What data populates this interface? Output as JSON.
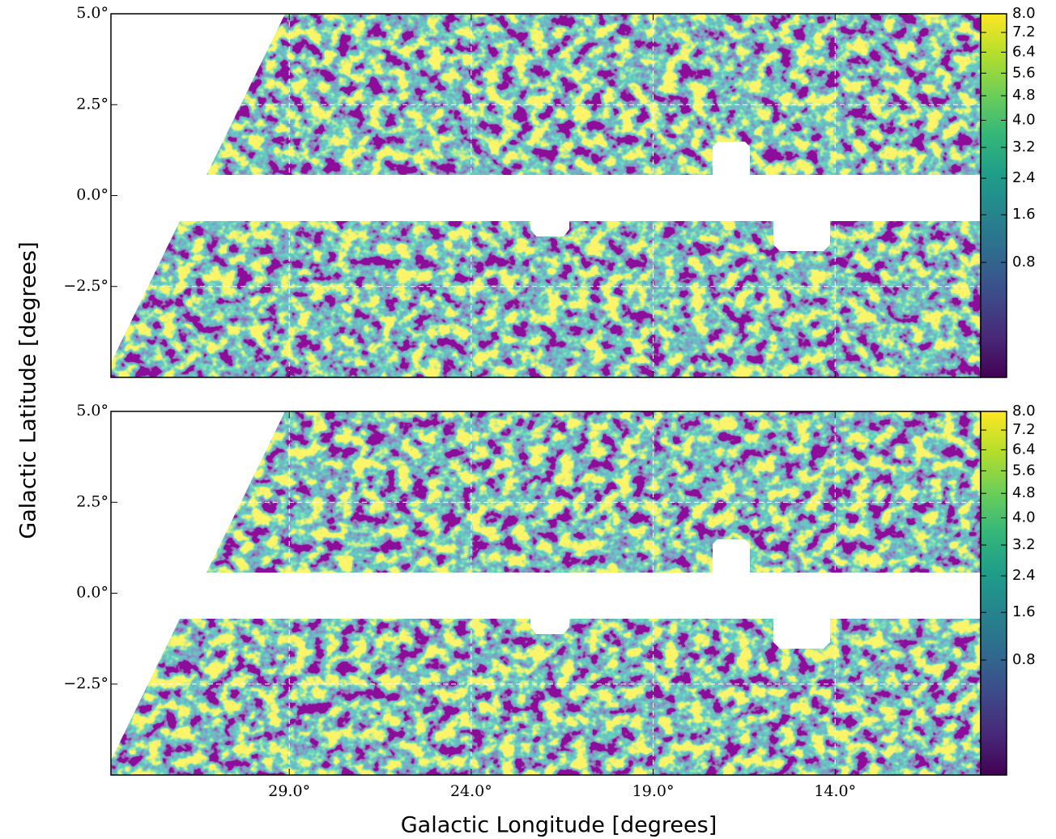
{
  "xlabel": "Galactic Longitude [degrees]",
  "ylabel": "Galactic Latitude [degrees]",
  "chart_data": [
    {
      "type": "heatmap",
      "xlim": [
        33.9,
        10.0
      ],
      "xticks": [
        29,
        24,
        19,
        14
      ],
      "ylim": [
        -5,
        5
      ],
      "yticks": [
        {
          "value": 5,
          "label": "5.0°"
        },
        {
          "value": 2.5,
          "label": "2.5°"
        },
        {
          "value": 0,
          "label": "0.0°"
        },
        {
          "value": -2.5,
          "label": "−2.5°"
        }
      ],
      "grid": true,
      "colormap": "viridis",
      "color_scale": "sqrt",
      "clim": [
        0,
        8
      ],
      "cticks": [
        {
          "value": 8,
          "label": "8.0"
        },
        {
          "value": 7.2,
          "label": "7.2"
        },
        {
          "value": 6.4,
          "label": "6.4"
        },
        {
          "value": 5.6,
          "label": "5.6"
        },
        {
          "value": 4.8,
          "label": "4.8"
        },
        {
          "value": 4,
          "label": "4.0"
        },
        {
          "value": 3.2,
          "label": "3.2"
        },
        {
          "value": 2.4,
          "label": "2.4"
        },
        {
          "value": 1.6,
          "label": "1.6"
        },
        {
          "value": 0.8,
          "label": "0.8"
        }
      ]
    },
    {
      "type": "heatmap",
      "xlim": [
        33.9,
        10.0
      ],
      "xticks": [
        {
          "value": 29,
          "label": "29.0°"
        },
        {
          "value": 24,
          "label": "24.0°"
        },
        {
          "value": 19,
          "label": "19.0°"
        },
        {
          "value": 14,
          "label": "14.0°"
        }
      ],
      "ylim": [
        -5,
        5
      ],
      "yticks": [
        {
          "value": 5,
          "label": "5.0°"
        },
        {
          "value": 2.5,
          "label": "2.5°"
        },
        {
          "value": 0,
          "label": "0.0°"
        },
        {
          "value": -2.5,
          "label": "−2.5°"
        }
      ],
      "grid": true,
      "colormap": "viridis",
      "color_scale": "sqrt",
      "clim": [
        0,
        8
      ],
      "cticks": [
        {
          "value": 8,
          "label": "8.0"
        },
        {
          "value": 7.2,
          "label": "7.2"
        },
        {
          "value": 6.4,
          "label": "6.4"
        },
        {
          "value": 5.6,
          "label": "5.6"
        },
        {
          "value": 4.8,
          "label": "4.8"
        },
        {
          "value": 4,
          "label": "4.0"
        },
        {
          "value": 3.2,
          "label": "3.2"
        },
        {
          "value": 2.4,
          "label": "2.4"
        },
        {
          "value": 1.6,
          "label": "1.6"
        },
        {
          "value": 0.8,
          "label": "0.8"
        }
      ]
    }
  ]
}
